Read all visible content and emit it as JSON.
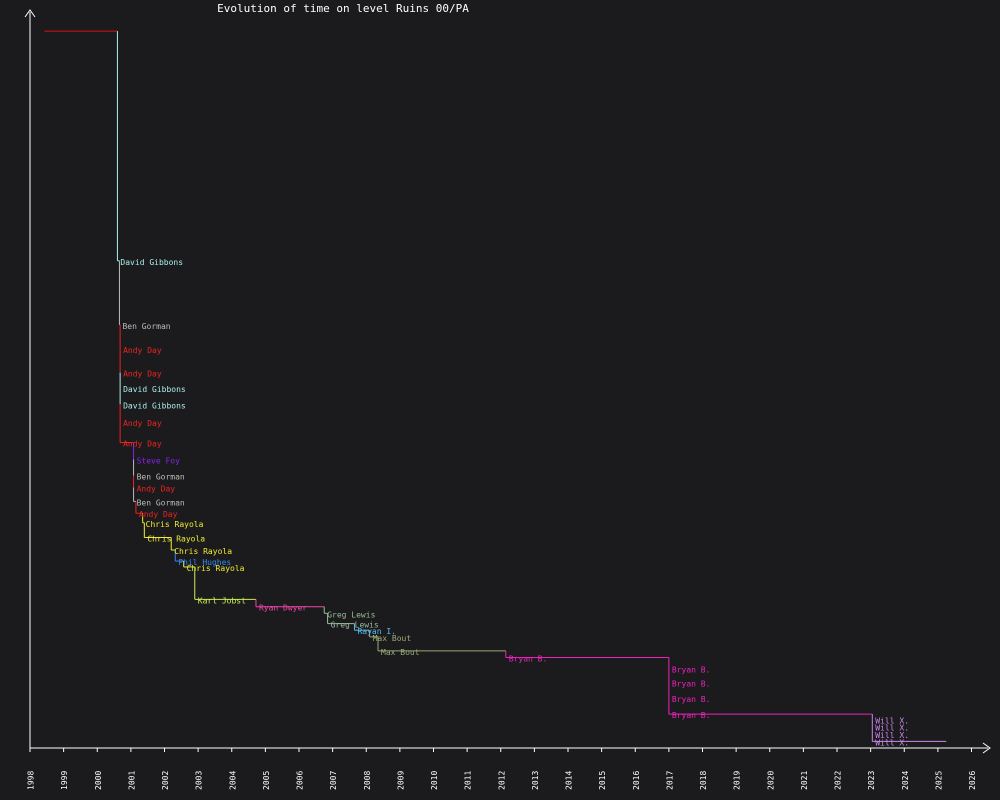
{
  "chart_data": {
    "type": "line",
    "title": "Evolution of time on level Ruins 00/PA",
    "xlabel": "",
    "ylabel": "",
    "x_ticks": [
      "1998",
      "1999",
      "2000",
      "2001",
      "2002",
      "2003",
      "2004",
      "2005",
      "2006",
      "2007",
      "2008",
      "2009",
      "2010",
      "2011",
      "2012",
      "2013",
      "2014",
      "2015",
      "2016",
      "2017",
      "2018",
      "2019",
      "2020",
      "2021",
      "2022",
      "2023",
      "2024",
      "2025",
      "2026"
    ],
    "x_range": [
      1998.0,
      2026.0
    ],
    "y_range": [
      0,
      100
    ],
    "grid": false,
    "legend": "none",
    "colors": {
      "background": "#1b1b1d",
      "axis": "#ffffff",
      "title": "#ffffff"
    },
    "start": {
      "x": 1998.43,
      "y": 97.4,
      "color": "#dd1111"
    },
    "records": [
      {
        "holder": "David Gibbons",
        "x": 2000.6,
        "y": 66.2,
        "color": "#aaeeee"
      },
      {
        "holder": "Ben Gorman",
        "x": 2000.66,
        "y": 57.5,
        "color": "#bbbbbb"
      },
      {
        "holder": "Andy Day",
        "x": 2000.68,
        "y": 54.2,
        "color": "#ee2222"
      },
      {
        "holder": "Andy Day",
        "x": 2000.68,
        "y": 51.0,
        "color": "#ee2222"
      },
      {
        "holder": "David Gibbons",
        "x": 2000.68,
        "y": 48.9,
        "color": "#aaeeee"
      },
      {
        "holder": "David Gibbons",
        "x": 2000.68,
        "y": 46.7,
        "color": "#aaeeee"
      },
      {
        "holder": "Andy Day",
        "x": 2000.68,
        "y": 44.3,
        "color": "#ee2222"
      },
      {
        "holder": "Andy Day",
        "x": 2000.68,
        "y": 41.5,
        "color": "#ee2222"
      },
      {
        "holder": "Steve Foy",
        "x": 2001.08,
        "y": 39.2,
        "color": "#8822ee"
      },
      {
        "holder": "Ben Gorman",
        "x": 2001.08,
        "y": 37.0,
        "color": "#bbbbbb"
      },
      {
        "holder": "Andy Day",
        "x": 2001.08,
        "y": 35.4,
        "color": "#ee2222"
      },
      {
        "holder": "Ben Gorman",
        "x": 2001.08,
        "y": 33.5,
        "color": "#bbbbbb"
      },
      {
        "holder": "Andy Day",
        "x": 2001.15,
        "y": 31.9,
        "color": "#ee2222"
      },
      {
        "holder": "Chris Rayola",
        "x": 2001.35,
        "y": 30.6,
        "color": "#eeee33"
      },
      {
        "holder": "Chris Rayola",
        "x": 2001.4,
        "y": 28.6,
        "color": "#eeee33"
      },
      {
        "holder": "Chris Rayola",
        "x": 2002.2,
        "y": 26.9,
        "color": "#eeee33"
      },
      {
        "holder": "Phil Hughes",
        "x": 2002.32,
        "y": 25.4,
        "color": "#3388ee"
      },
      {
        "holder": "Chris Rayola",
        "x": 2002.57,
        "y": 24.6,
        "color": "#eeee33"
      },
      {
        "holder": "Karl Jobst",
        "x": 2002.9,
        "y": 20.2,
        "color": "#ccee55"
      },
      {
        "holder": "Ryan Dwyer",
        "x": 2004.72,
        "y": 19.2,
        "color": "#ee44aa"
      },
      {
        "holder": "Greg Lewis",
        "x": 2006.75,
        "y": 18.3,
        "color": "#99bb99"
      },
      {
        "holder": "Greg Lewis",
        "x": 2006.85,
        "y": 16.9,
        "color": "#99bb99"
      },
      {
        "holder": "Rayan I.",
        "x": 2007.65,
        "y": 16.0,
        "color": "#55bbee"
      },
      {
        "holder": "Max Bout",
        "x": 2008.1,
        "y": 15.1,
        "color": "#99aa77"
      },
      {
        "holder": "Max Bout",
        "x": 2008.35,
        "y": 13.2,
        "color": "#99aa77"
      },
      {
        "holder": "Bryan B.",
        "x": 2012.15,
        "y": 12.3,
        "color": "#ee22bb"
      },
      {
        "holder": "Bryan B.",
        "x": 2017.0,
        "y": 10.8,
        "color": "#ee22bb"
      },
      {
        "holder": "Bryan B.",
        "x": 2017.0,
        "y": 8.9,
        "color": "#ee22bb"
      },
      {
        "holder": "Bryan B.",
        "x": 2017.0,
        "y": 6.8,
        "color": "#ee22bb"
      },
      {
        "holder": "Bryan B.",
        "x": 2017.0,
        "y": 4.6,
        "color": "#ee22bb"
      },
      {
        "holder": "Will X.",
        "x": 2023.05,
        "y": 3.9,
        "color": "#cc88ee"
      },
      {
        "holder": "Will X.",
        "x": 2023.05,
        "y": 2.9,
        "color": "#cc88ee"
      },
      {
        "holder": "Will X.",
        "x": 2023.05,
        "y": 1.9,
        "color": "#cc88ee"
      },
      {
        "holder": "Will X.",
        "x": 2023.05,
        "y": 0.9,
        "color": "#cc88ee"
      }
    ],
    "end_x": 2025.25
  }
}
